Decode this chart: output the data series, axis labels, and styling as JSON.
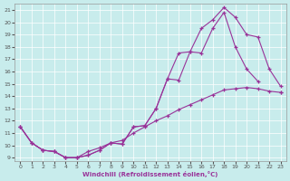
{
  "xlabel": "Windchill (Refroidissement éolien,°C)",
  "bg_color": "#c8ecec",
  "line_color": "#993399",
  "line1_x": [
    0,
    1,
    2,
    3,
    4,
    5,
    6,
    7,
    8,
    9,
    10,
    11,
    12,
    13,
    14,
    15,
    16,
    17,
    18,
    19,
    20,
    21,
    22,
    23
  ],
  "line1_y": [
    11.5,
    10.2,
    9.6,
    9.5,
    9.0,
    9.0,
    9.2,
    9.6,
    10.2,
    10.1,
    11.5,
    11.6,
    13.0,
    15.4,
    17.5,
    17.6,
    19.5,
    20.2,
    21.2,
    20.4,
    19.0,
    18.8,
    16.2,
    14.8
  ],
  "line2_x": [
    0,
    1,
    2,
    3,
    4,
    5,
    6,
    7,
    8,
    9,
    10,
    11,
    12,
    13,
    14,
    15,
    16,
    17,
    18,
    19,
    20,
    21,
    22,
    23
  ],
  "line2_y": [
    11.5,
    10.2,
    9.6,
    9.5,
    9.0,
    9.0,
    9.2,
    9.6,
    10.2,
    10.1,
    11.5,
    11.6,
    13.0,
    15.4,
    15.3,
    17.6,
    17.5,
    19.5,
    20.8,
    18.0,
    16.2,
    15.2,
    null,
    14.3
  ],
  "line3_x": [
    0,
    1,
    2,
    3,
    4,
    5,
    6,
    7,
    8,
    9,
    10,
    11,
    12,
    13,
    14,
    15,
    16,
    17,
    18,
    19,
    20,
    21,
    22,
    23
  ],
  "line3_y": [
    11.5,
    10.2,
    9.6,
    9.5,
    9.0,
    9.0,
    9.5,
    9.8,
    10.2,
    10.4,
    11.0,
    11.5,
    12.0,
    12.4,
    12.9,
    13.3,
    13.7,
    14.1,
    14.5,
    14.6,
    14.7,
    14.6,
    14.4,
    14.3
  ],
  "xlim": [
    -0.5,
    23.5
  ],
  "ylim": [
    8.7,
    21.5
  ],
  "xticks": [
    0,
    1,
    2,
    3,
    4,
    5,
    6,
    7,
    8,
    9,
    10,
    11,
    12,
    13,
    14,
    15,
    16,
    17,
    18,
    19,
    20,
    21,
    22,
    23
  ],
  "yticks": [
    9,
    10,
    11,
    12,
    13,
    14,
    15,
    16,
    17,
    18,
    19,
    20,
    21
  ]
}
